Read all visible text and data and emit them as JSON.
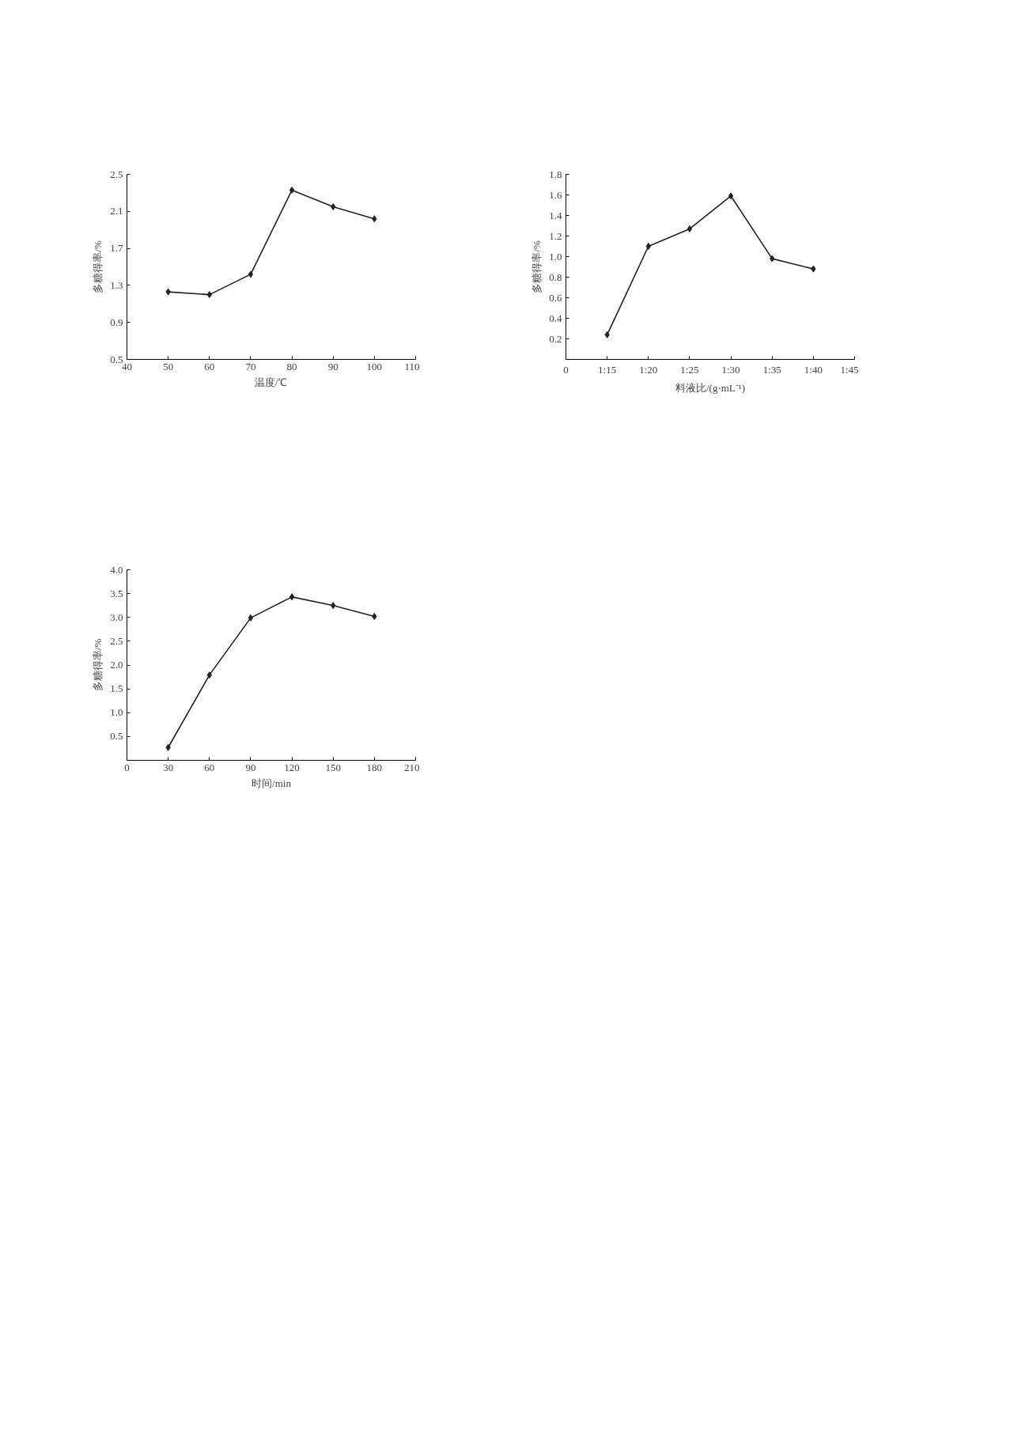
{
  "chart_data": [
    {
      "type": "line",
      "xlabel": "温度/℃",
      "ylabel": "多糖得率/%",
      "x": [
        50,
        60,
        70,
        80,
        90,
        100
      ],
      "series": [
        {
          "color": "#222222",
          "values": [
            1.23,
            1.2,
            1.42,
            2.33,
            2.15,
            2.02
          ]
        }
      ],
      "xlim": [
        40,
        110
      ],
      "xticks": [
        40,
        50,
        60,
        70,
        80,
        90,
        100,
        110
      ],
      "ylim": [
        0.5,
        2.5
      ],
      "yticks": [
        0.5,
        0.9,
        1.3,
        1.7,
        2.1,
        2.5
      ],
      "marker": "diamond",
      "line_style": "solid",
      "grid": false
    },
    {
      "type": "line",
      "xlabel": "料液比/(g·mL⁻¹)",
      "ylabel": "多糖得率/%",
      "categories": [
        "0",
        "1:15",
        "1:20",
        "1:25",
        "1:30",
        "1:35",
        "1:40",
        "1:45"
      ],
      "series": [
        {
          "color": "#222222",
          "values": [
            null,
            0.24,
            1.1,
            1.27,
            1.59,
            0.98,
            0.88,
            null
          ]
        }
      ],
      "ylim": [
        0,
        1.8
      ],
      "yticks": [
        0.2,
        0.4,
        0.6,
        0.8,
        {
          "value": 1,
          "label": "1.0"
        },
        1.2,
        1.4,
        1.6,
        1.8
      ],
      "marker": "diamond",
      "line_style": "solid",
      "grid": false
    },
    {
      "type": "line",
      "xlabel": "时间/min",
      "ylabel": "多糖得率/%",
      "x": [
        30,
        60,
        90,
        120,
        150,
        180
      ],
      "series": [
        {
          "color": "#222222",
          "values": [
            0.27,
            1.79,
            2.99,
            3.43,
            3.25,
            3.02
          ]
        }
      ],
      "xlim": [
        0,
        210
      ],
      "xticks": [
        0,
        30,
        60,
        90,
        120,
        150,
        180,
        210
      ],
      "ylim": [
        0,
        4.0
      ],
      "yticks": [
        0.5,
        {
          "value": 1,
          "label": "1.0"
        },
        1.5,
        {
          "value": 2,
          "label": "2.0"
        },
        2.5,
        {
          "value": 3,
          "label": "3.0"
        },
        3.5,
        {
          "value": 4,
          "label": "4.0"
        }
      ],
      "marker": "diamond",
      "line_style": "solid",
      "grid": false
    }
  ]
}
